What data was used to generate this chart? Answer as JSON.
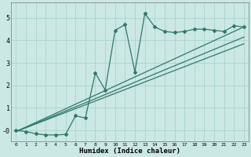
{
  "title": "",
  "xlabel": "Humidex (Indice chaleur)",
  "ylabel": "",
  "bg_color": "#cce8e4",
  "grid_color": "#a8d4cc",
  "line_color": "#2d7a6a",
  "xlim": [
    -0.5,
    23.5
  ],
  "ylim": [
    -0.5,
    5.7
  ],
  "xticks": [
    0,
    1,
    2,
    3,
    4,
    5,
    6,
    7,
    8,
    9,
    10,
    11,
    12,
    13,
    14,
    15,
    16,
    17,
    18,
    19,
    20,
    21,
    22,
    23
  ],
  "yticks": [
    0,
    1,
    2,
    3,
    4,
    5
  ],
  "ytick_labels": [
    "-0",
    "1",
    "2",
    "3",
    "4",
    "5"
  ],
  "data_x": [
    0,
    1,
    2,
    3,
    4,
    5,
    6,
    7,
    8,
    9,
    10,
    11,
    12,
    13,
    14,
    15,
    16,
    17,
    18,
    19,
    20,
    21,
    22,
    23
  ],
  "data_y": [
    0.0,
    -0.05,
    -0.15,
    -0.2,
    -0.2,
    -0.18,
    0.65,
    0.55,
    2.55,
    1.8,
    4.45,
    4.7,
    2.6,
    5.2,
    4.6,
    4.4,
    4.35,
    4.4,
    4.5,
    4.5,
    4.45,
    4.4,
    4.65,
    4.6
  ],
  "line1_x": [
    0,
    23
  ],
  "line1_y": [
    -0.05,
    4.6
  ],
  "line2_x": [
    0,
    23
  ],
  "line2_y": [
    -0.05,
    4.15
  ],
  "line3_x": [
    0,
    23
  ],
  "line3_y": [
    -0.05,
    3.85
  ]
}
